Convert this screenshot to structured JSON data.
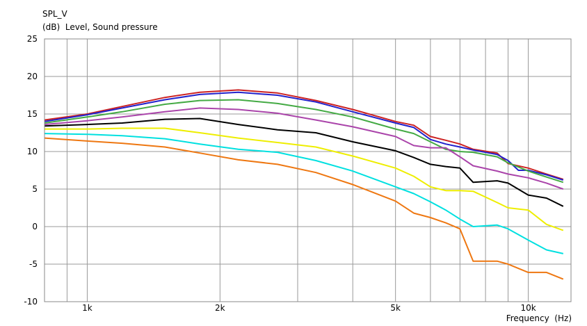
{
  "chart_data": {
    "type": "line",
    "title": "SPL_V",
    "ylabel": "(dB)  Level, Sound pressure",
    "xlabel": "Frequency  (Hz)",
    "x_scale": "log",
    "xlim": [
      800,
      12500
    ],
    "ylim": [
      -10,
      25
    ],
    "grid": true,
    "legend": "none",
    "y_ticks": [
      "25",
      "20",
      "15",
      "10",
      "5",
      "0",
      "-5",
      "-10"
    ],
    "x_tick_labels": [
      {
        "value": 1000,
        "label": "1k"
      },
      {
        "value": 2000,
        "label": "2k"
      },
      {
        "value": 5000,
        "label": "5k"
      },
      {
        "value": 10000,
        "label": "10k"
      }
    ],
    "x_minor_ticks": [
      900,
      3000,
      4000,
      6000,
      7000,
      8000,
      9000
    ],
    "series": [
      {
        "color": "#cc2222",
        "points": [
          [
            800,
            14.2
          ],
          [
            1000,
            15.0
          ],
          [
            1200,
            16.0
          ],
          [
            1500,
            17.2
          ],
          [
            1800,
            17.9
          ],
          [
            2200,
            18.2
          ],
          [
            2700,
            17.8
          ],
          [
            3300,
            16.8
          ],
          [
            4000,
            15.6
          ],
          [
            5000,
            14.0
          ],
          [
            5500,
            13.5
          ],
          [
            6000,
            12.0
          ],
          [
            6500,
            11.5
          ],
          [
            7000,
            11.0
          ],
          [
            7500,
            10.3
          ],
          [
            8500,
            9.8
          ],
          [
            9000,
            8.4
          ],
          [
            10000,
            7.8
          ],
          [
            11000,
            7.0
          ],
          [
            12000,
            6.3
          ]
        ]
      },
      {
        "color": "#2222cc",
        "points": [
          [
            800,
            14.0
          ],
          [
            1000,
            14.9
          ],
          [
            1200,
            15.8
          ],
          [
            1500,
            16.9
          ],
          [
            1800,
            17.6
          ],
          [
            2200,
            17.9
          ],
          [
            2700,
            17.5
          ],
          [
            3300,
            16.6
          ],
          [
            4000,
            15.3
          ],
          [
            5000,
            13.8
          ],
          [
            5500,
            13.2
          ],
          [
            6000,
            11.6
          ],
          [
            6500,
            11.0
          ],
          [
            7000,
            10.6
          ],
          [
            7500,
            10.2
          ],
          [
            8500,
            9.6
          ],
          [
            9000,
            8.8
          ],
          [
            9500,
            7.5
          ],
          [
            10000,
            7.5
          ],
          [
            11000,
            6.9
          ],
          [
            12000,
            6.2
          ]
        ]
      },
      {
        "color": "#44aa44",
        "points": [
          [
            800,
            13.8
          ],
          [
            1000,
            14.6
          ],
          [
            1200,
            15.3
          ],
          [
            1500,
            16.3
          ],
          [
            1800,
            16.8
          ],
          [
            2200,
            16.9
          ],
          [
            2700,
            16.4
          ],
          [
            3300,
            15.6
          ],
          [
            4000,
            14.6
          ],
          [
            5000,
            13.0
          ],
          [
            5500,
            12.4
          ],
          [
            6000,
            11.3
          ],
          [
            6500,
            10.3
          ],
          [
            7000,
            10.0
          ],
          [
            7500,
            9.9
          ],
          [
            8500,
            9.3
          ],
          [
            9000,
            8.5
          ],
          [
            10000,
            7.4
          ],
          [
            11000,
            6.6
          ],
          [
            12000,
            5.9
          ]
        ]
      },
      {
        "color": "#aa44aa",
        "points": [
          [
            800,
            13.6
          ],
          [
            1000,
            14.1
          ],
          [
            1200,
            14.6
          ],
          [
            1500,
            15.3
          ],
          [
            1800,
            15.8
          ],
          [
            2200,
            15.6
          ],
          [
            2700,
            15.1
          ],
          [
            3300,
            14.2
          ],
          [
            4000,
            13.3
          ],
          [
            5000,
            12.0
          ],
          [
            5500,
            10.8
          ],
          [
            6000,
            10.5
          ],
          [
            6500,
            10.5
          ],
          [
            7000,
            9.3
          ],
          [
            7500,
            8.1
          ],
          [
            8500,
            7.4
          ],
          [
            9000,
            7.0
          ],
          [
            10000,
            6.5
          ],
          [
            11000,
            5.8
          ],
          [
            12000,
            5.0
          ]
        ]
      },
      {
        "color": "#000000",
        "points": [
          [
            800,
            13.4
          ],
          [
            1000,
            13.6
          ],
          [
            1200,
            13.8
          ],
          [
            1500,
            14.3
          ],
          [
            1800,
            14.4
          ],
          [
            2200,
            13.6
          ],
          [
            2700,
            12.9
          ],
          [
            3300,
            12.5
          ],
          [
            4000,
            11.3
          ],
          [
            5000,
            10.1
          ],
          [
            5500,
            9.2
          ],
          [
            6000,
            8.3
          ],
          [
            6500,
            8.0
          ],
          [
            7000,
            7.8
          ],
          [
            7500,
            5.9
          ],
          [
            8500,
            6.1
          ],
          [
            9000,
            5.8
          ],
          [
            10000,
            4.2
          ],
          [
            11000,
            3.8
          ],
          [
            12000,
            2.7
          ]
        ]
      },
      {
        "color": "#eeee00",
        "points": [
          [
            800,
            13.0
          ],
          [
            1000,
            13.0
          ],
          [
            1200,
            13.1
          ],
          [
            1500,
            13.1
          ],
          [
            1800,
            12.5
          ],
          [
            2200,
            11.8
          ],
          [
            2700,
            11.2
          ],
          [
            3300,
            10.6
          ],
          [
            4000,
            9.4
          ],
          [
            5000,
            7.8
          ],
          [
            5500,
            6.7
          ],
          [
            6000,
            5.3
          ],
          [
            6500,
            4.8
          ],
          [
            7000,
            4.8
          ],
          [
            7500,
            4.7
          ],
          [
            8500,
            3.2
          ],
          [
            9000,
            2.5
          ],
          [
            10000,
            2.2
          ],
          [
            11000,
            0.3
          ],
          [
            12000,
            -0.5
          ]
        ]
      },
      {
        "color": "#00e0e0",
        "points": [
          [
            800,
            12.4
          ],
          [
            1000,
            12.3
          ],
          [
            1200,
            12.1
          ],
          [
            1500,
            11.7
          ],
          [
            1800,
            11.0
          ],
          [
            2200,
            10.3
          ],
          [
            2700,
            9.9
          ],
          [
            3300,
            8.8
          ],
          [
            4000,
            7.4
          ],
          [
            5000,
            5.3
          ],
          [
            5500,
            4.4
          ],
          [
            6000,
            3.3
          ],
          [
            6500,
            2.2
          ],
          [
            7000,
            1.0
          ],
          [
            7500,
            0.0
          ],
          [
            8500,
            0.2
          ],
          [
            9000,
            -0.3
          ],
          [
            10000,
            -1.8
          ],
          [
            11000,
            -3.1
          ],
          [
            12000,
            -3.6
          ]
        ]
      },
      {
        "color": "#ee7711",
        "points": [
          [
            800,
            11.8
          ],
          [
            1000,
            11.4
          ],
          [
            1200,
            11.1
          ],
          [
            1500,
            10.6
          ],
          [
            1800,
            9.8
          ],
          [
            2200,
            8.9
          ],
          [
            2700,
            8.3
          ],
          [
            3300,
            7.2
          ],
          [
            4000,
            5.6
          ],
          [
            5000,
            3.4
          ],
          [
            5500,
            1.8
          ],
          [
            6000,
            1.2
          ],
          [
            6500,
            0.5
          ],
          [
            7000,
            -0.3
          ],
          [
            7500,
            -4.6
          ],
          [
            8500,
            -4.6
          ],
          [
            9000,
            -5.0
          ],
          [
            10000,
            -6.1
          ],
          [
            11000,
            -6.1
          ],
          [
            12000,
            -7.0
          ]
        ]
      }
    ]
  }
}
